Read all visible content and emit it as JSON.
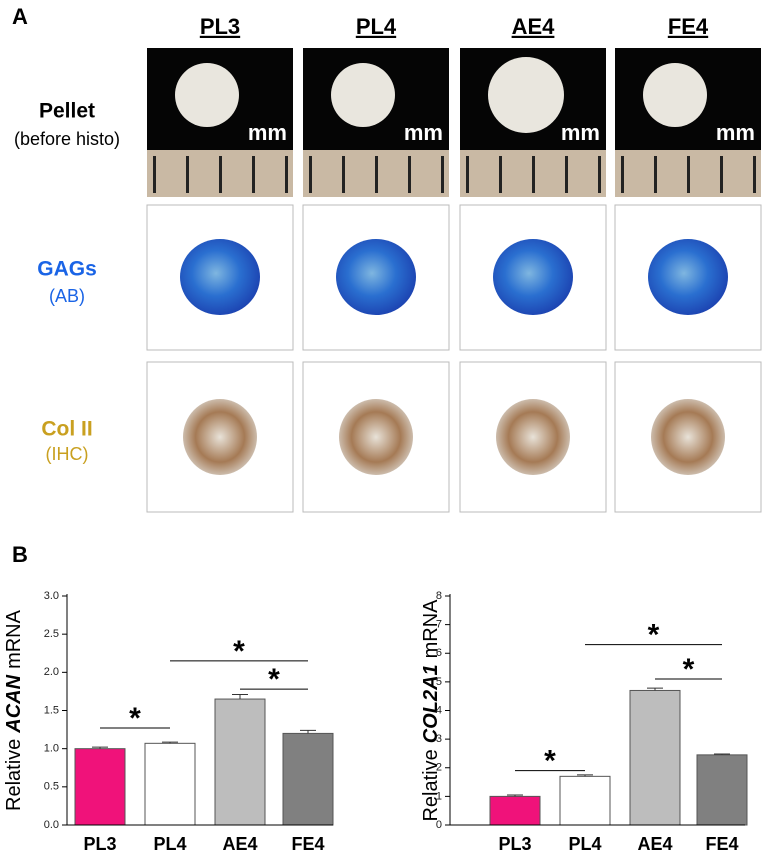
{
  "panel_a": {
    "label": "A",
    "columns": [
      "PL3",
      "PL4",
      "AE4",
      "FE4"
    ],
    "rows": [
      {
        "title": "Pellet",
        "subtitle": "(before histo)"
      },
      {
        "title": "GAGs",
        "subtitle": "(AB)"
      },
      {
        "title": "Col II",
        "subtitle": "(IHC)"
      }
    ],
    "scale_label": "mm"
  },
  "panel_b": {
    "label": "B"
  },
  "chart_data": [
    {
      "type": "bar",
      "y_label": {
        "prefix": "Relative",
        "gene": "ACAN",
        "suffix": "mRNA"
      },
      "categories": [
        "PL3",
        "PL4",
        "AE4",
        "FE4"
      ],
      "values": [
        1.0,
        1.07,
        1.65,
        1.2
      ],
      "errors": [
        0.02,
        0.015,
        0.06,
        0.04
      ],
      "colors": [
        "#f0127a",
        "#ffffff",
        "#bdbdbd",
        "#808080"
      ],
      "ylim": [
        0,
        3
      ],
      "yticks": [
        {
          "value": 0,
          "label": "0.0"
        },
        0.5,
        {
          "value": 1,
          "label": "1.0"
        },
        1.5,
        {
          "value": 2,
          "label": "2.0"
        },
        2.5,
        {
          "value": 3,
          "label": "3.0"
        }
      ],
      "annotations": [
        {
          "text": "*",
          "from": 0,
          "to": 1,
          "y": 1.27
        },
        {
          "text": "*",
          "from": 1,
          "to": 3,
          "y": 2.15
        },
        {
          "text": "*",
          "from": 2,
          "to": 3,
          "y": 1.78
        }
      ]
    },
    {
      "type": "bar",
      "y_label": {
        "prefix": "Relative",
        "gene": "COL2A1",
        "suffix": "mRNA"
      },
      "categories": [
        "PL3",
        "PL4",
        "AE4",
        "FE4"
      ],
      "values": [
        1.0,
        1.7,
        4.7,
        2.45
      ],
      "errors": [
        0.05,
        0.05,
        0.08,
        0.03
      ],
      "colors": [
        "#f0127a",
        "#ffffff",
        "#bdbdbd",
        "#808080"
      ],
      "ylim": [
        0,
        8
      ],
      "yticks": [
        0,
        1,
        2,
        3,
        4,
        5,
        6,
        7,
        8
      ],
      "annotations": [
        {
          "text": "*",
          "from": 0,
          "to": 1,
          "y": 1.9
        },
        {
          "text": "*",
          "from": 1,
          "to": 3,
          "y": 6.3
        },
        {
          "text": "*",
          "from": 2,
          "to": 3,
          "y": 5.1
        }
      ]
    }
  ]
}
